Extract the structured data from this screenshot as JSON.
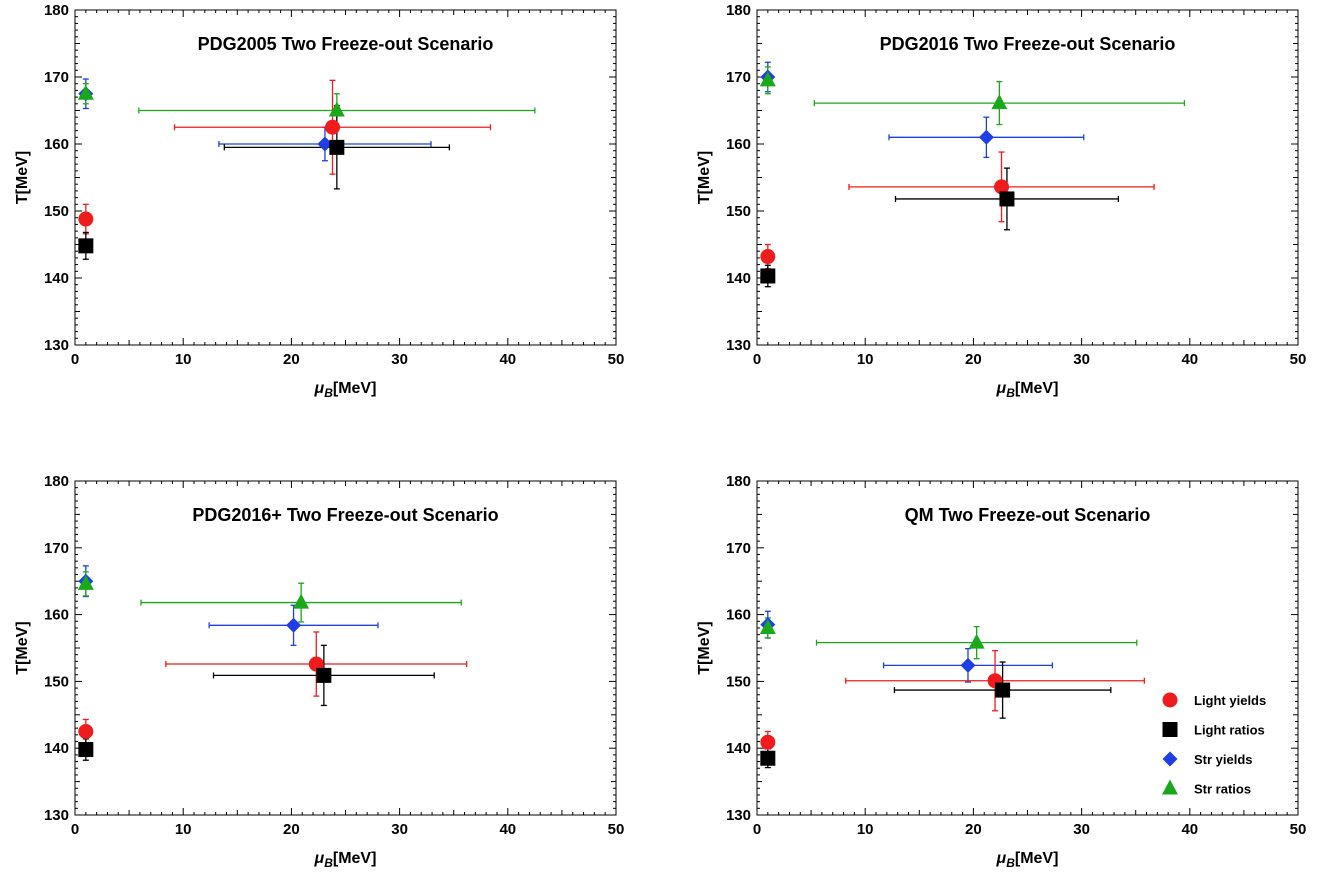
{
  "chart_data": [
    {
      "type": "scatter",
      "title": "PDG2005 Two Freeze-out Scenario",
      "xlabel_main": "μ",
      "xlabel_sub": "B",
      "xlabel_unit": "[MeV]",
      "ylabel": "T[MeV]",
      "xlim": [
        0,
        50
      ],
      "ylim": [
        130,
        180
      ],
      "xticks": [
        0,
        10,
        20,
        30,
        40,
        50
      ],
      "yticks": [
        130,
        140,
        150,
        160,
        170,
        180
      ],
      "series": [
        {
          "name": "Light yields",
          "color": "#ee1c1c",
          "marker": "circle",
          "points": [
            {
              "x": 1.0,
              "y": 148.8,
              "xerr": 0,
              "yerr": 2.2
            },
            {
              "x": 23.8,
              "y": 162.5,
              "xerr": 14.6,
              "yerr": 7.0
            }
          ]
        },
        {
          "name": "Light ratios",
          "color": "#000000",
          "marker": "square",
          "points": [
            {
              "x": 1.0,
              "y": 144.8,
              "xerr": 0,
              "yerr": 2.0
            },
            {
              "x": 24.2,
              "y": 159.5,
              "xerr": 10.4,
              "yerr": 6.2
            }
          ]
        },
        {
          "name": "Str yields",
          "color": "#1f3fe6",
          "marker": "diamond",
          "points": [
            {
              "x": 1.0,
              "y": 167.5,
              "xerr": 0,
              "yerr": 2.2
            },
            {
              "x": 23.1,
              "y": 160.0,
              "xerr": 9.8,
              "yerr": 2.5
            }
          ]
        },
        {
          "name": "Str ratios",
          "color": "#19a819",
          "marker": "triangle",
          "points": [
            {
              "x": 1.0,
              "y": 167.5,
              "xerr": 0,
              "yerr": 1.5
            },
            {
              "x": 24.2,
              "y": 165.0,
              "xerr": 18.3,
              "yerr": 2.5
            }
          ]
        }
      ]
    },
    {
      "type": "scatter",
      "title": "PDG2016 Two Freeze-out Scenario",
      "xlabel_main": "μ",
      "xlabel_sub": "B",
      "xlabel_unit": "[MeV]",
      "ylabel": "T[MeV]",
      "xlim": [
        0,
        50
      ],
      "ylim": [
        130,
        180
      ],
      "xticks": [
        0,
        10,
        20,
        30,
        40,
        50
      ],
      "yticks": [
        130,
        140,
        150,
        160,
        170,
        180
      ],
      "series": [
        {
          "name": "Light yields",
          "color": "#ee1c1c",
          "marker": "circle",
          "points": [
            {
              "x": 1.0,
              "y": 143.2,
              "xerr": 0,
              "yerr": 1.8
            },
            {
              "x": 22.6,
              "y": 153.6,
              "xerr": 14.1,
              "yerr": 5.2
            }
          ]
        },
        {
          "name": "Light ratios",
          "color": "#000000",
          "marker": "square",
          "points": [
            {
              "x": 1.0,
              "y": 140.3,
              "xerr": 0,
              "yerr": 1.6
            },
            {
              "x": 23.1,
              "y": 151.8,
              "xerr": 10.3,
              "yerr": 4.6
            }
          ]
        },
        {
          "name": "Str yields",
          "color": "#1f3fe6",
          "marker": "diamond",
          "points": [
            {
              "x": 1.0,
              "y": 170.0,
              "xerr": 0,
              "yerr": 2.2
            },
            {
              "x": 21.2,
              "y": 161.0,
              "xerr": 9.0,
              "yerr": 3.0
            }
          ]
        },
        {
          "name": "Str ratios",
          "color": "#19a819",
          "marker": "triangle",
          "points": [
            {
              "x": 1.0,
              "y": 169.5,
              "xerr": 0,
              "yerr": 2.0
            },
            {
              "x": 22.4,
              "y": 166.1,
              "xerr": 17.1,
              "yerr": 3.2
            }
          ]
        }
      ]
    },
    {
      "type": "scatter",
      "title": "PDG2016+ Two Freeze-out Scenario",
      "xlabel_main": "μ",
      "xlabel_sub": "B",
      "xlabel_unit": "[MeV]",
      "ylabel": "T[MeV]",
      "xlim": [
        0,
        50
      ],
      "ylim": [
        130,
        180
      ],
      "xticks": [
        0,
        10,
        20,
        30,
        40,
        50
      ],
      "yticks": [
        130,
        140,
        150,
        160,
        170,
        180
      ],
      "series": [
        {
          "name": "Light yields",
          "color": "#ee1c1c",
          "marker": "circle",
          "points": [
            {
              "x": 1.0,
              "y": 142.5,
              "xerr": 0,
              "yerr": 1.8
            },
            {
              "x": 22.3,
              "y": 152.6,
              "xerr": 13.9,
              "yerr": 4.8
            }
          ]
        },
        {
          "name": "Light ratios",
          "color": "#000000",
          "marker": "square",
          "points": [
            {
              "x": 1.0,
              "y": 139.8,
              "xerr": 0,
              "yerr": 1.6
            },
            {
              "x": 23.0,
              "y": 150.9,
              "xerr": 10.2,
              "yerr": 4.5
            }
          ]
        },
        {
          "name": "Str yields",
          "color": "#1f3fe6",
          "marker": "diamond",
          "points": [
            {
              "x": 1.0,
              "y": 165.0,
              "xerr": 0,
              "yerr": 2.3
            },
            {
              "x": 20.2,
              "y": 158.4,
              "xerr": 7.8,
              "yerr": 3.0
            }
          ]
        },
        {
          "name": "Str ratios",
          "color": "#19a819",
          "marker": "triangle",
          "points": [
            {
              "x": 1.0,
              "y": 164.6,
              "xerr": 0,
              "yerr": 1.8
            },
            {
              "x": 20.9,
              "y": 161.8,
              "xerr": 14.8,
              "yerr": 2.9
            }
          ]
        }
      ]
    },
    {
      "type": "scatter",
      "title": "QM Two Freeze-out Scenario",
      "xlabel_main": "μ",
      "xlabel_sub": "B",
      "xlabel_unit": "[MeV]",
      "ylabel": "T[MeV]",
      "xlim": [
        0,
        50
      ],
      "ylim": [
        130,
        180
      ],
      "xticks": [
        0,
        10,
        20,
        30,
        40,
        50
      ],
      "yticks": [
        130,
        140,
        150,
        160,
        170,
        180
      ],
      "legend": {
        "position": "bottom-right",
        "entries": [
          "Light yields",
          "Light ratios",
          "Str yields",
          "Str ratios"
        ]
      },
      "series": [
        {
          "name": "Light yields",
          "color": "#ee1c1c",
          "marker": "circle",
          "points": [
            {
              "x": 1.0,
              "y": 140.9,
              "xerr": 0,
              "yerr": 1.6
            },
            {
              "x": 22.0,
              "y": 150.1,
              "xerr": 13.8,
              "yerr": 4.5
            }
          ]
        },
        {
          "name": "Light ratios",
          "color": "#000000",
          "marker": "square",
          "points": [
            {
              "x": 1.0,
              "y": 138.5,
              "xerr": 0,
              "yerr": 1.4
            },
            {
              "x": 22.7,
              "y": 148.7,
              "xerr": 10.0,
              "yerr": 4.2
            }
          ]
        },
        {
          "name": "Str yields",
          "color": "#1f3fe6",
          "marker": "diamond",
          "points": [
            {
              "x": 1.0,
              "y": 158.5,
              "xerr": 0,
              "yerr": 2.0
            },
            {
              "x": 19.5,
              "y": 152.4,
              "xerr": 7.8,
              "yerr": 2.5
            }
          ]
        },
        {
          "name": "Str ratios",
          "color": "#19a819",
          "marker": "triangle",
          "points": [
            {
              "x": 1.0,
              "y": 158.0,
              "xerr": 0,
              "yerr": 1.5
            },
            {
              "x": 20.3,
              "y": 155.8,
              "xerr": 14.8,
              "yerr": 2.4
            }
          ]
        }
      ]
    }
  ]
}
